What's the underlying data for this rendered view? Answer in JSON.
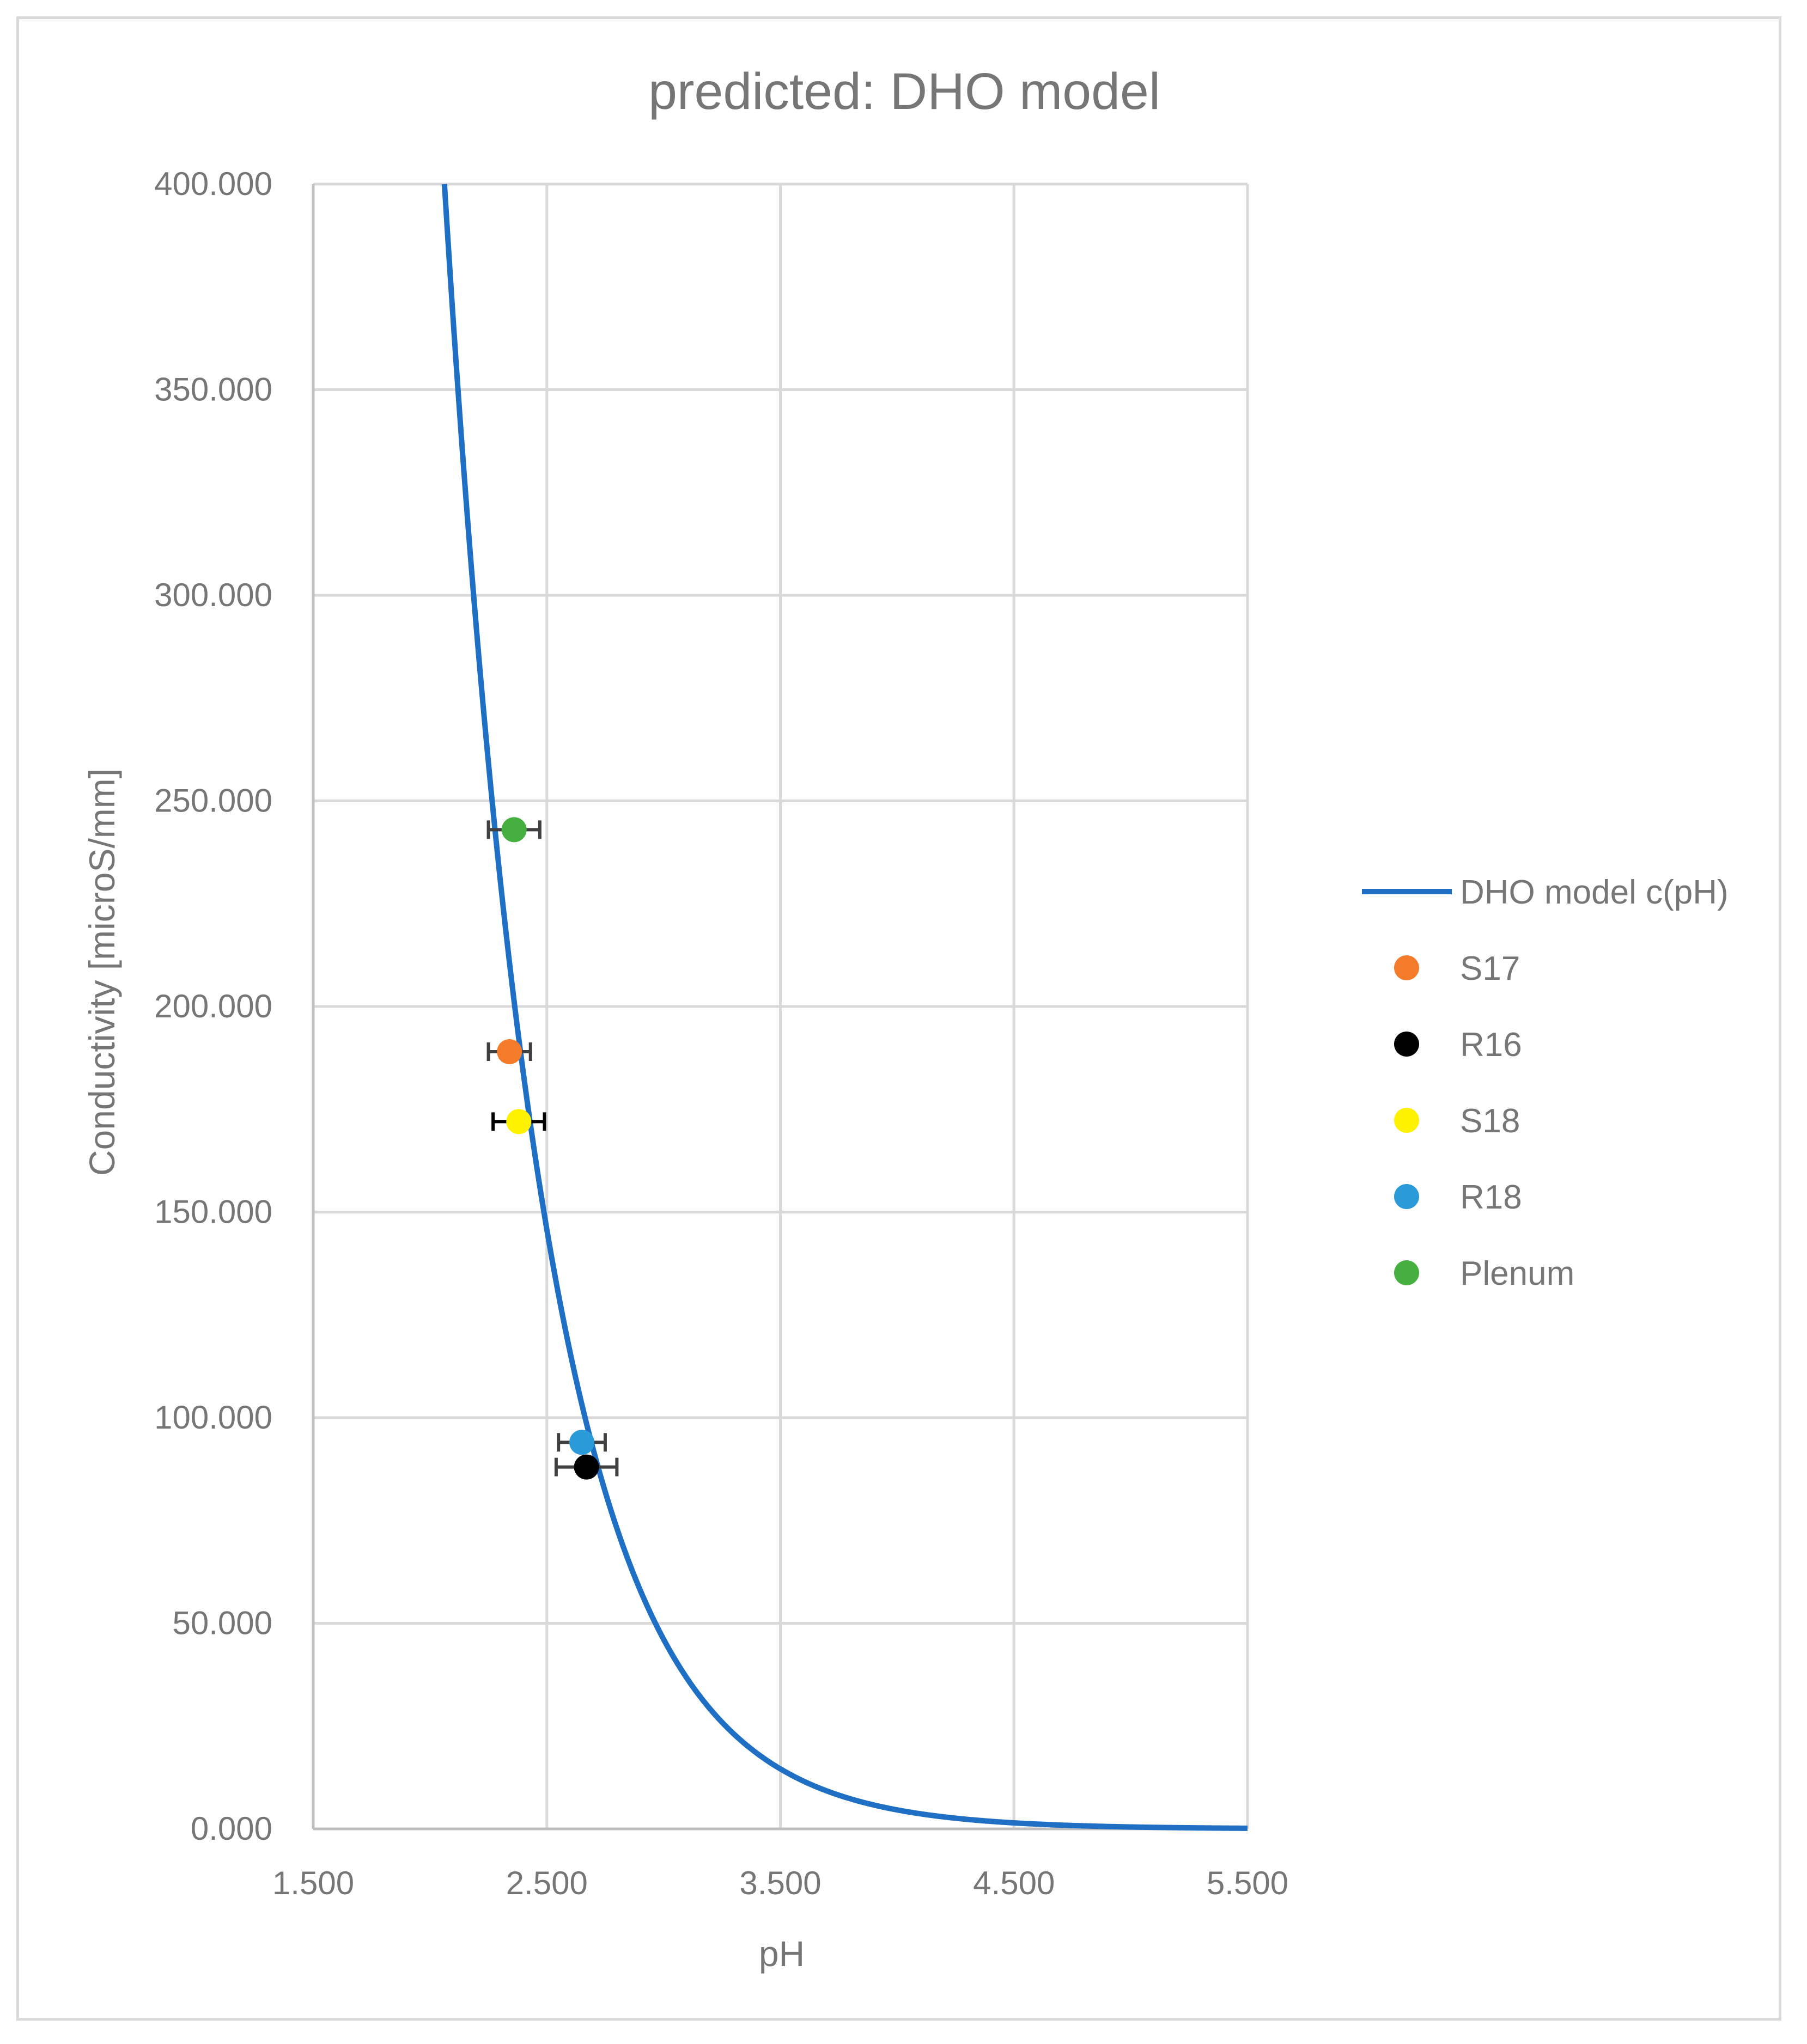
{
  "chart_data": {
    "type": "scatter",
    "title": "predicted: DHO model",
    "xlabel": "pH",
    "ylabel": "Conductivity [microS/mm]",
    "xlim": [
      1.5,
      5.5
    ],
    "ylim": [
      0,
      400
    ],
    "xticks": [
      1.5,
      2.5,
      3.5,
      4.5,
      5.5
    ],
    "yticks": [
      0,
      50,
      100,
      150,
      200,
      250,
      300,
      350,
      400
    ],
    "xtick_labels": [
      "1.500",
      "2.500",
      "3.500",
      "4.500",
      "5.500"
    ],
    "ytick_labels": [
      "0.000",
      "50.000",
      "100.000",
      "150.000",
      "200.000",
      "250.000",
      "300.000",
      "350.000",
      "400.000"
    ],
    "grid": true,
    "legend_position": "right",
    "model": {
      "name": "DHO model c(pH)",
      "color": "#1f6fc5",
      "formula": "y = 92 * 10^(2.7 - pH)"
    },
    "series": [
      {
        "name": "S17",
        "color": "#f47b2a",
        "x": 2.34,
        "y": 189,
        "xerr": 0.09,
        "err_color": "#404040"
      },
      {
        "name": "R16",
        "color": "#000000",
        "x": 2.67,
        "y": 88,
        "xerr": 0.13,
        "err_color": "#404040"
      },
      {
        "name": "S18",
        "color": "#fff200",
        "x": 2.38,
        "y": 172,
        "xerr": 0.11,
        "err_color": "#000000"
      },
      {
        "name": "R18",
        "color": "#2a9ad8",
        "x": 2.65,
        "y": 94,
        "xerr": 0.1,
        "err_color": "#404040"
      },
      {
        "name": "Plenum",
        "color": "#45b03f",
        "x": 2.36,
        "y": 243,
        "xerr": 0.11,
        "err_color": "#404040"
      }
    ]
  }
}
